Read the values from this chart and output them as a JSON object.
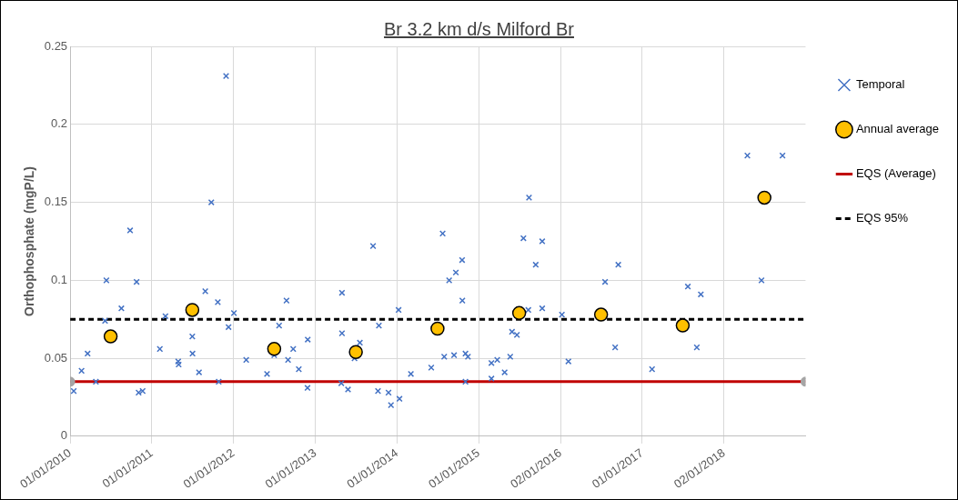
{
  "chart_data": {
    "type": "scatter",
    "title": "Br 3.2 km d/s Milford Br",
    "ylabel": "Orthophosphate (mgP/L)",
    "xlim": [
      "2010-01-01",
      "2019-01-01"
    ],
    "xticks": [
      {
        "value": "2010-01-01",
        "label": "01/01/2010"
      },
      {
        "value": "2011-01-01",
        "label": "01/01/2011"
      },
      {
        "value": "2012-01-01",
        "label": "01/01/2012"
      },
      {
        "value": "2013-01-01",
        "label": "01/01/2013"
      },
      {
        "value": "2014-01-01",
        "label": "01/01/2014"
      },
      {
        "value": "2015-01-01",
        "label": "01/01/2015"
      },
      {
        "value": "2016-01-02",
        "label": "02/01/2016"
      },
      {
        "value": "2017-01-01",
        "label": "01/01/2017"
      },
      {
        "value": "2018-01-02",
        "label": "02/01/2018"
      }
    ],
    "ylim": [
      0,
      0.25
    ],
    "yticks": [
      0,
      0.05,
      0.1,
      0.15,
      0.2,
      0.25
    ],
    "grid": true,
    "legend": "right",
    "series": [
      {
        "name": "Temporal",
        "marker": "cross",
        "color": "#4472c4",
        "x": [
          "2010-01-17",
          "2010-02-21",
          "2010-03-20",
          "2010-04-26",
          "2010-06-06",
          "2010-06-12",
          "2010-08-18",
          "2010-09-26",
          "2010-10-25",
          "2010-11-03",
          "2010-11-21",
          "2011-02-06",
          "2011-03-03",
          "2011-04-29",
          "2011-05-01",
          "2011-07-01",
          "2011-07-02",
          "2011-07-31",
          "2011-08-28",
          "2011-09-24",
          "2011-10-23",
          "2011-10-27",
          "2011-11-29",
          "2011-12-10",
          "2012-01-03",
          "2012-02-27",
          "2012-05-30",
          "2012-07-01",
          "2012-07-23",
          "2012-08-25",
          "2012-09-01",
          "2012-09-24",
          "2012-10-19",
          "2012-11-28",
          "2012-11-27",
          "2013-04-30",
          "2013-04-30",
          "2013-04-27",
          "2013-05-27",
          "2013-06-25",
          "2013-07-19",
          "2013-09-16",
          "2013-10-12",
          "2013-10-08",
          "2013-11-24",
          "2013-12-05",
          "2014-01-08",
          "2014-01-12",
          "2014-03-04",
          "2014-06-03",
          "2014-07-24",
          "2014-07-31",
          "2014-08-22",
          "2014-09-13",
          "2014-09-21",
          "2014-10-19",
          "2014-10-20",
          "2014-11-03",
          "2014-11-03",
          "2014-11-14",
          "2015-02-27",
          "2015-02-27",
          "2015-03-25",
          "2015-04-27",
          "2015-05-22",
          "2015-05-30",
          "2015-06-21",
          "2015-07-20",
          "2015-08-14",
          "2015-08-11",
          "2015-09-13",
          "2015-10-12",
          "2015-10-12",
          "2016-01-08",
          "2016-02-06",
          "2016-07-19",
          "2016-09-16",
          "2016-09-02",
          "2017-02-14",
          "2017-07-24",
          "2017-09-20",
          "2017-09-02",
          "2018-04-16",
          "2018-06-18",
          "2018-09-20"
        ],
        "values": [
          0.029,
          0.042,
          0.053,
          0.035,
          0.074,
          0.1,
          0.082,
          0.132,
          0.099,
          0.028,
          0.029,
          0.056,
          0.077,
          0.048,
          0.046,
          0.064,
          0.053,
          0.041,
          0.093,
          0.15,
          0.086,
          0.035,
          0.231,
          0.07,
          0.079,
          0.049,
          0.04,
          0.052,
          0.071,
          0.087,
          0.049,
          0.056,
          0.043,
          0.062,
          0.031,
          0.092,
          0.066,
          0.034,
          0.03,
          0.05,
          0.06,
          0.122,
          0.071,
          0.029,
          0.028,
          0.02,
          0.081,
          0.024,
          0.04,
          0.044,
          0.13,
          0.051,
          0.1,
          0.052,
          0.105,
          0.113,
          0.087,
          0.053,
          0.035,
          0.051,
          0.047,
          0.037,
          0.049,
          0.041,
          0.051,
          0.067,
          0.065,
          0.127,
          0.153,
          0.081,
          0.11,
          0.125,
          0.082,
          0.078,
          0.048,
          0.099,
          0.11,
          0.057,
          0.043,
          0.096,
          0.091,
          0.057,
          0.18,
          0.1,
          0.18
        ]
      },
      {
        "name": "Annual average",
        "marker": "circle",
        "color": "#ffc000",
        "x": [
          "2010-07-01",
          "2011-07-01",
          "2012-07-01",
          "2013-07-01",
          "2014-07-01",
          "2015-07-01",
          "2016-07-01",
          "2017-07-01",
          "2018-07-01"
        ],
        "values": [
          0.064,
          0.081,
          0.056,
          0.054,
          0.069,
          0.079,
          0.078,
          0.071,
          0.153
        ]
      },
      {
        "name": "EQS (Average)",
        "type": "line",
        "marker": "circle",
        "line_style": "solid",
        "color": "#c00000",
        "colors": [
          "#a5a5a5",
          "#a5a5a5"
        ],
        "x": [
          "2010-01-01",
          "2019-01-01"
        ],
        "values": [
          0.035,
          0.035
        ]
      },
      {
        "name": "EQS 95%",
        "type": "line",
        "marker": "none",
        "line_style": "dashed",
        "color": "#000000",
        "x": [
          "2010-01-01",
          "2019-01-01"
        ],
        "values": [
          0.075,
          0.075
        ]
      }
    ]
  }
}
